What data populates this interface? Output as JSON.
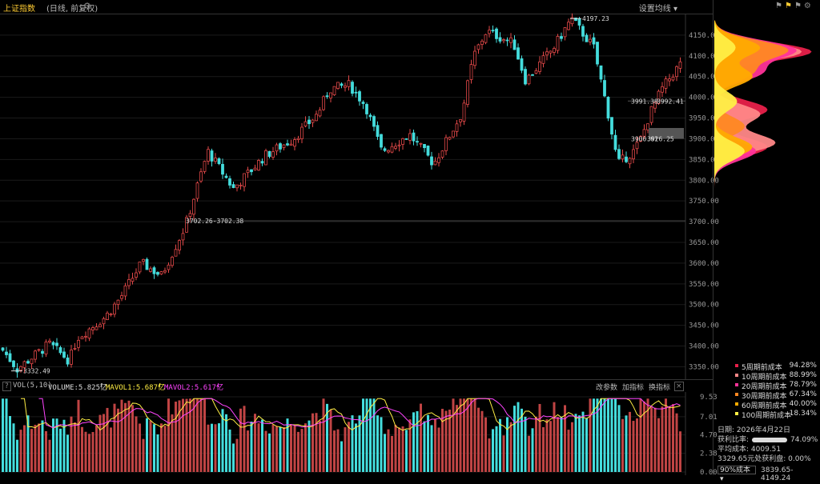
{
  "header": {
    "title": "上证指数",
    "subtitle": "(日线, 前复权)",
    "ma_settings": "设置均线"
  },
  "price_axis": [
    "4150.00",
    "4100.00",
    "4050.00",
    "4000.00",
    "3950.00",
    "3900.00",
    "3850.00",
    "3800.00",
    "3750.00",
    "3700.00",
    "3650.00",
    "3600.00",
    "3550.00",
    "3500.00",
    "3450.00",
    "3400.00",
    "3350.00"
  ],
  "annotations": {
    "high": "4197.23",
    "low": "3332.49",
    "level1": "3702.26-3702.38",
    "level2a": "3991.38",
    "level2b": "3992.41",
    "level3a": "3900.61",
    "level3b": "3926.25"
  },
  "volume": {
    "title": "VOL(5,10)",
    "volume_label": "VOLUME:5.825亿",
    "mavol1": "MAVOL1:5.687亿",
    "mavol2": "MAVOL2:5.617亿",
    "buttons": [
      "改参数",
      "加指标",
      "换指标"
    ],
    "axis": [
      "9.53",
      "7.01",
      "4.70",
      "2.38",
      "0.00"
    ]
  },
  "cost_legend": [
    {
      "label": "5周期前成本",
      "pct": "94.28%",
      "color": "#e8204a"
    },
    {
      "label": "10周期前成本",
      "pct": "88.99%",
      "color": "#ff8888"
    },
    {
      "label": "20周期前成本",
      "pct": "78.79%",
      "color": "#ff3399"
    },
    {
      "label": "30周期前成本",
      "pct": "67.34%",
      "color": "#ff8822"
    },
    {
      "label": "60周期前成本",
      "pct": "40.00%",
      "color": "#ffaa00"
    },
    {
      "label": "100周期前成本",
      "pct": "18.34%",
      "color": "#ffee44"
    }
  ],
  "info": {
    "date_label": "日期:",
    "date": "2026年4月22日",
    "profit_label": "获利比率:",
    "profit": "74.09%",
    "avg_label": "平均成本:",
    "avg": "4009.51",
    "profit_disk": "3329.65元处获利盘: 0.00%",
    "select": "90%成本",
    "range": "3839.65-4149.24"
  }
}
